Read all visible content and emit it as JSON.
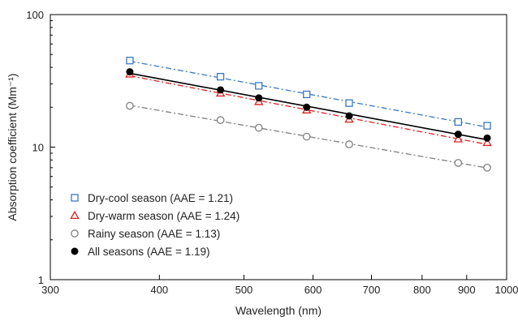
{
  "chart_data": {
    "type": "scatter",
    "xlabel": "Wavelength (nm)",
    "ylabel": "Absorption coefficient (Mm⁻¹)",
    "x_scale": "log",
    "y_scale": "log",
    "xlim": [
      300,
      1000
    ],
    "ylim": [
      1,
      100
    ],
    "x_ticks": [
      300,
      400,
      500,
      600,
      700,
      800,
      900,
      1000
    ],
    "y_ticks": [
      1,
      10,
      100
    ],
    "grid": false,
    "legend_position": "bottom-left",
    "series": [
      {
        "name": "Dry-cool season (AAE = 1.21)",
        "marker": "open-square",
        "color": "#3a78c0",
        "line_style": "dash-dot",
        "x": [
          370,
          470,
          520,
          590,
          660,
          880,
          950
        ],
        "y": [
          45.0,
          34.0,
          29.0,
          25.0,
          21.5,
          15.5,
          14.5
        ]
      },
      {
        "name": "Dry-warm season (AAE = 1.24)",
        "marker": "open-triangle",
        "color": "#e02020",
        "line_style": "dash-dot",
        "x": [
          370,
          470,
          520,
          590,
          660,
          880,
          950
        ],
        "y": [
          35.5,
          25.5,
          22.0,
          19.0,
          16.2,
          11.5,
          10.8
        ]
      },
      {
        "name": "Rainy season (AAE = 1.13)",
        "marker": "open-circle",
        "color": "#808080",
        "line_style": "dash-dot",
        "x": [
          370,
          470,
          520,
          590,
          660,
          880,
          950
        ],
        "y": [
          20.5,
          16.0,
          14.0,
          12.0,
          10.5,
          7.6,
          7.0
        ]
      },
      {
        "name": "All seasons (AAE = 1.19)",
        "marker": "filled-circle",
        "color": "#000000",
        "line_style": "solid",
        "x": [
          370,
          470,
          520,
          590,
          660,
          880,
          950
        ],
        "y": [
          37.0,
          27.0,
          23.5,
          20.0,
          17.2,
          12.5,
          11.7
        ]
      }
    ]
  }
}
